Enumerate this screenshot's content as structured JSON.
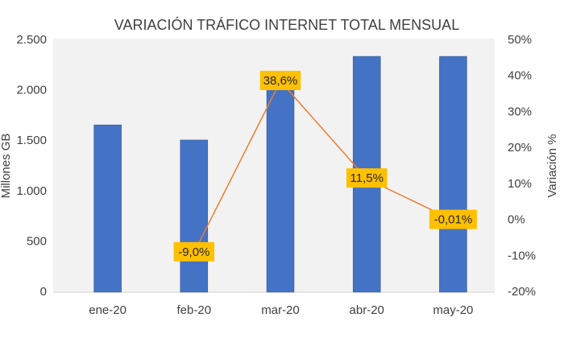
{
  "chart_data": {
    "type": "bar-line",
    "title": "VARIACIÓN TRÁFICO INTERNET TOTAL MENSUAL",
    "y_label": "Millones GB",
    "y2_label": "Variación %",
    "categories": [
      "ene-20",
      "feb-20",
      "mar-20",
      "abr-20",
      "may-20"
    ],
    "series": [
      {
        "type": "bar",
        "color": "#4472c4",
        "values": [
          1660,
          1510,
          2100,
          2340,
          2340
        ]
      },
      {
        "type": "line",
        "axis": "y2",
        "color": "#ed7d31",
        "values": [
          null,
          -9.0,
          38.6,
          11.5,
          -0.01
        ],
        "value_labels": [
          null,
          "-9,0%",
          "38,6%",
          "11,5%",
          "-0,01%"
        ],
        "label_color": "#ffc000"
      }
    ],
    "ylim": [
      0,
      2500
    ],
    "yticks": [
      0,
      500,
      {
        "value": 1000,
        "label": "1.000"
      },
      {
        "value": 1500,
        "label": "1.500"
      },
      {
        "value": 2000,
        "label": "2.000"
      },
      {
        "value": 2500,
        "label": "2.500"
      }
    ],
    "y2lim": [
      -20,
      50
    ],
    "y2ticks": [
      {
        "value": -20,
        "label": "-20%"
      },
      {
        "value": -10,
        "label": "-10%"
      },
      {
        "value": 0,
        "label": "0%"
      },
      {
        "value": 10,
        "label": "10%"
      },
      {
        "value": 20,
        "label": "20%"
      },
      {
        "value": 30,
        "label": "30%"
      },
      {
        "value": 40,
        "label": "40%"
      },
      {
        "value": 50,
        "label": "50%"
      }
    ],
    "grid": false
  }
}
